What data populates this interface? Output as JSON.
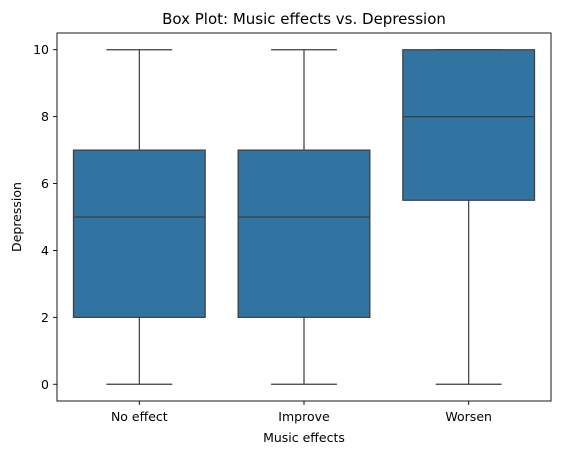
{
  "chart_data": {
    "type": "box",
    "title": "Box Plot: Music effects vs. Depression",
    "xlabel": "Music effects",
    "ylabel": "Depression",
    "ylim": [
      -0.5,
      10.5
    ],
    "yticks": [
      0,
      2,
      4,
      6,
      8,
      10
    ],
    "grid": false,
    "color": "#3274a1",
    "categories": [
      "No effect",
      "Improve",
      "Worsen"
    ],
    "boxes": [
      {
        "category": "No effect",
        "whislo": 0,
        "q1": 2,
        "med": 5,
        "q3": 7,
        "whishi": 10
      },
      {
        "category": "Improve",
        "whislo": 0,
        "q1": 2,
        "med": 5,
        "q3": 7,
        "whishi": 10
      },
      {
        "category": "Worsen",
        "whislo": 0,
        "q1": 5.5,
        "med": 8,
        "q3": 10,
        "whishi": 10
      }
    ]
  }
}
